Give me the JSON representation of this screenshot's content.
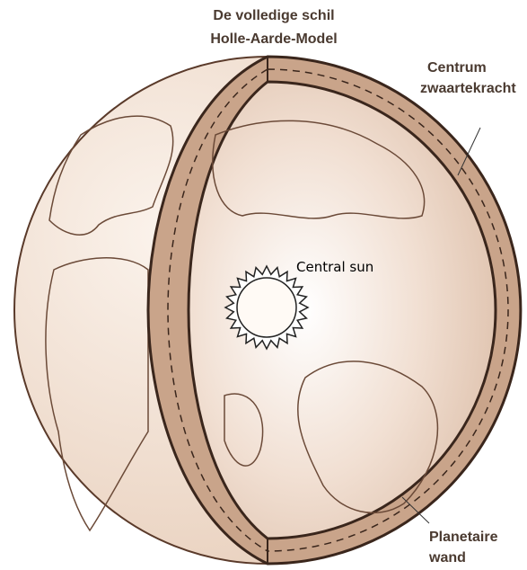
{
  "title": [
    "De volledige schil",
    "Holle-Aarde-Model"
  ],
  "labels": {
    "gravity": [
      "Centrum",
      "zwaartekracht"
    ],
    "sun": "Central sun",
    "wall": [
      "Planetaire",
      "wand"
    ]
  }
}
